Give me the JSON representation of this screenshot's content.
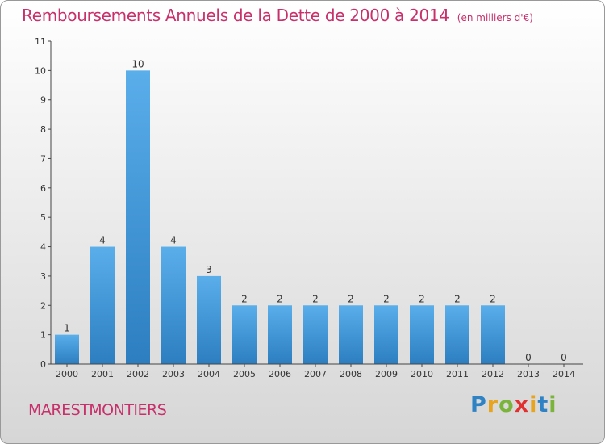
{
  "title": "Remboursements Annuels de la Dette de 2000 à 2014",
  "unit": "(en milliers d'€)",
  "commune": "MARESTMONTIERS",
  "brand": {
    "letters": [
      "P",
      "r",
      "o",
      "x",
      "i",
      "t",
      "i"
    ],
    "colors": [
      "#2f83c5",
      "#e8a41c",
      "#7bb43a",
      "#e2302f",
      "#e8a41c",
      "#2f83c5",
      "#7bb43a"
    ]
  },
  "colors": {
    "bar_top": "#5aaeea",
    "bar_bottom": "#2c7ec0",
    "title": "#c8306a"
  },
  "chart_data": {
    "type": "bar",
    "categories": [
      "2000",
      "2001",
      "2002",
      "2003",
      "2004",
      "2005",
      "2006",
      "2007",
      "2008",
      "2009",
      "2010",
      "2011",
      "2012",
      "2013",
      "2014"
    ],
    "values": [
      1,
      4,
      10,
      4,
      3,
      2,
      2,
      2,
      2,
      2,
      2,
      2,
      2,
      0,
      0
    ],
    "data_labels": [
      "1",
      "4",
      "10",
      "4",
      "3",
      "2",
      "2",
      "2",
      "2",
      "2",
      "2",
      "2",
      "2",
      "0",
      "0"
    ],
    "y_ticks": [
      "0",
      "1",
      "2",
      "3",
      "4",
      "5",
      "6",
      "7",
      "8",
      "9",
      "10",
      "11"
    ],
    "ylim": [
      0,
      11
    ],
    "grid": false,
    "legend": "none"
  }
}
